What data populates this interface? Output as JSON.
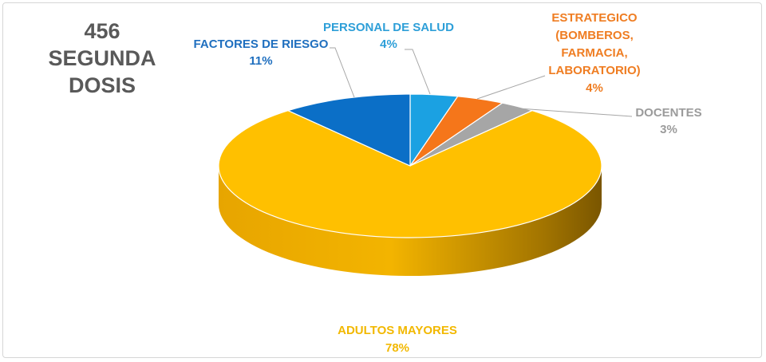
{
  "chart_data": {
    "type": "pie",
    "title": [
      "456",
      "SEGUNDA DOSIS"
    ],
    "slices": [
      {
        "label": [
          "PERSONAL DE SALUD"
        ],
        "pct_label": "4%",
        "value": 4,
        "color": "#1ba1e2",
        "label_color": "#2e9fd8"
      },
      {
        "label": [
          "ESTRATEGICO",
          "(BOMBEROS,",
          "FARMACIA,",
          "LABORATORIO)"
        ],
        "pct_label": "4%",
        "value": 4,
        "color": "#f5761a",
        "label_color": "#ef7d22"
      },
      {
        "label": [
          "DOCENTES"
        ],
        "pct_label": "3%",
        "value": 3,
        "color": "#a6a6a6",
        "label_color": "#9b9b9b"
      },
      {
        "label": [
          "ADULTOS MAYORES"
        ],
        "pct_label": "78%",
        "value": 78,
        "color": "#ffc000",
        "label_color": "#f2b800"
      },
      {
        "label": [
          "FACTORES DE RIESGO"
        ],
        "pct_label": "11%",
        "value": 11,
        "color": "#0b6fc7",
        "label_color": "#1f6fbf"
      }
    ],
    "legend": "none"
  }
}
